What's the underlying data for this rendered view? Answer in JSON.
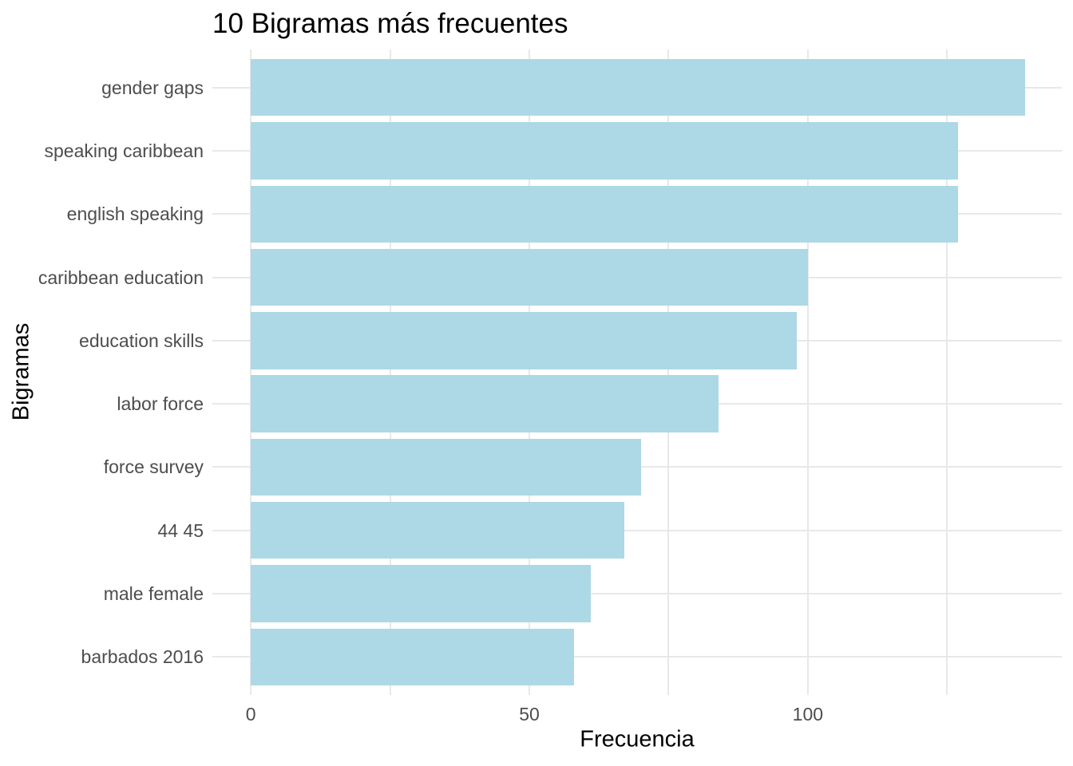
{
  "chart_data": {
    "type": "bar",
    "orientation": "horizontal",
    "title": "10 Bigramas más frecuentes",
    "xlabel": "Frecuencia",
    "ylabel": "Bigramas",
    "categories": [
      "gender gaps",
      "speaking caribbean",
      "english speaking",
      "caribbean education",
      "education skills",
      "labor force",
      "force survey",
      "44 45",
      "male female",
      "barbados 2016"
    ],
    "values": [
      139,
      127,
      127,
      100,
      98,
      84,
      70,
      67,
      61,
      58
    ],
    "x_major_ticks": [
      0,
      50,
      100
    ],
    "x_minor_gridlines": [
      25,
      75,
      125
    ],
    "xlim": [
      -6.9,
      145.6
    ],
    "grid": "major-and-minor-vertical-plus-row-lines",
    "legend": "none",
    "colors": {
      "bar_fill": "#ADD8E6",
      "gridline": "#E8E8E8",
      "tick_label": "#4D4D4D",
      "title_text": "#000000",
      "background": "#FFFFFF"
    }
  }
}
